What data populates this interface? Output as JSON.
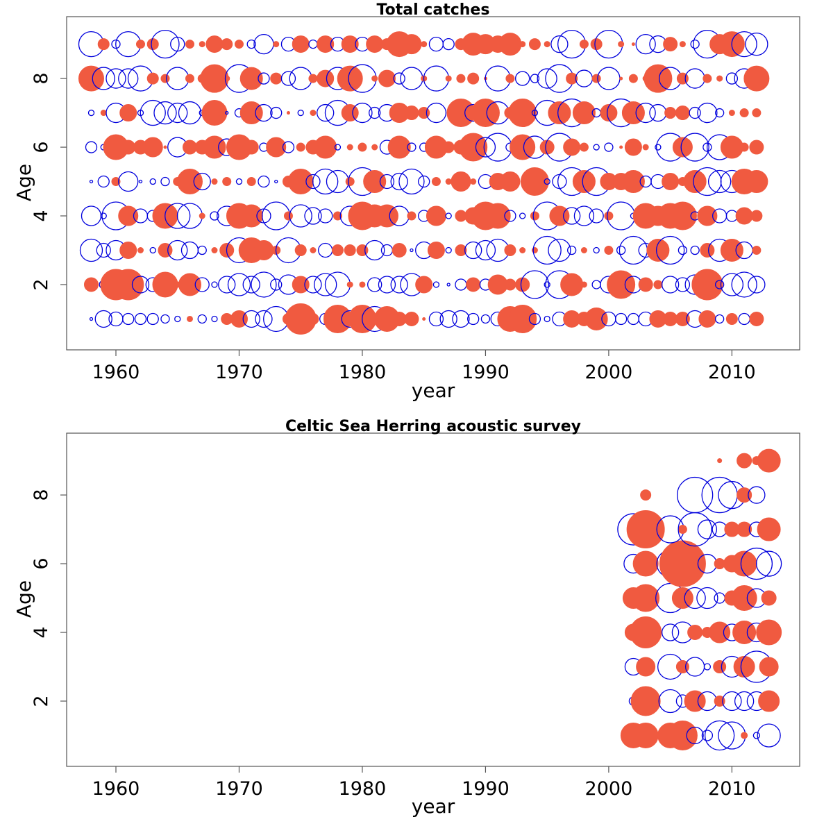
{
  "colors": {
    "positive": "#F05A40",
    "negative": "#0000DD"
  },
  "chart_data": [
    {
      "type": "scatter",
      "title": "Total catches",
      "xlabel": "year",
      "ylabel": "Age",
      "xlim": [
        1956,
        2015.5
      ],
      "ylim": [
        0.1,
        9.8
      ],
      "xticks": [
        1960,
        1970,
        1980,
        1990,
        2000,
        2010
      ],
      "yticks": [
        2,
        4,
        6,
        8
      ],
      "x": [
        1958,
        1959,
        1960,
        1961,
        1962,
        1963,
        1964,
        1965,
        1966,
        1967,
        1968,
        1969,
        1970,
        1971,
        1972,
        1973,
        1974,
        1975,
        1976,
        1977,
        1978,
        1979,
        1980,
        1981,
        1982,
        1983,
        1984,
        1985,
        1986,
        1987,
        1988,
        1989,
        1990,
        1991,
        1992,
        1993,
        1994,
        1995,
        1996,
        1997,
        1998,
        1999,
        2000,
        2001,
        2002,
        2003,
        2004,
        2005,
        2006,
        2007,
        2008,
        2009,
        2010,
        2011,
        2012
      ],
      "ages": [
        1,
        2,
        3,
        4,
        5,
        6,
        7,
        8,
        9
      ],
      "residuals": [
        [
          -1,
          -6,
          -5,
          -4,
          -4,
          -4,
          -3,
          -2,
          2,
          -3,
          -2,
          4,
          6,
          -6,
          -6,
          -9,
          4,
          11,
          4,
          -4,
          10,
          -6,
          10,
          -9,
          9,
          5,
          5,
          1,
          -5,
          -6,
          -6,
          -4,
          -3,
          -5,
          9,
          10,
          -4,
          -2,
          -5,
          6,
          5,
          8,
          -5,
          -4,
          -4,
          -5,
          6,
          5,
          5,
          -6,
          6,
          -3,
          4,
          -4,
          5
        ],
        [
          5,
          -3,
          11,
          11,
          -6,
          -5,
          9,
          2,
          8,
          -5,
          -2,
          -6,
          -8,
          -6,
          -9,
          -4,
          -7,
          6,
          -6,
          -8,
          -9,
          2,
          2,
          -5,
          -6,
          -6,
          -8,
          6,
          -2,
          -1,
          -4,
          5,
          -4,
          7,
          4,
          5,
          -10,
          -2,
          -10,
          8,
          2,
          -3,
          -6,
          10,
          -6,
          5,
          3,
          -6,
          -5,
          -7,
          11,
          -3,
          -8,
          -9,
          -6
        ],
        [
          -8,
          -5,
          -7,
          6,
          2,
          -2,
          5,
          -7,
          -6,
          -3,
          2,
          5,
          -9,
          9,
          7,
          3,
          -9,
          4,
          2,
          -5,
          4,
          4,
          4,
          -7,
          -4,
          5,
          -1,
          -6,
          6,
          -2,
          4,
          -6,
          -7,
          -8,
          4,
          2,
          2,
          -10,
          -8,
          -3,
          2,
          -2,
          3,
          -3,
          -10,
          -5,
          8,
          -10,
          -3,
          -3,
          5,
          -8,
          8,
          -6,
          3
        ],
        [
          -7,
          -2,
          -10,
          7,
          -5,
          -4,
          9,
          -9,
          -9,
          2,
          -3,
          -7,
          9,
          8,
          -5,
          -10,
          3,
          -8,
          -6,
          -5,
          3,
          -7,
          10,
          8,
          8,
          -7,
          3,
          -4,
          7,
          -2,
          4,
          6,
          10,
          9,
          -4,
          -2,
          3,
          -10,
          7,
          -6,
          -7,
          -5,
          3,
          -10,
          -2,
          9,
          7,
          9,
          10,
          -3,
          7,
          -5,
          -4,
          6,
          4
        ],
        [
          -1,
          -4,
          3,
          -7,
          -1,
          -2,
          -3,
          3,
          9,
          -6,
          2,
          3,
          -2,
          3,
          -4,
          -1,
          4,
          9,
          -5,
          -9,
          -8,
          3,
          -10,
          8,
          -5,
          -6,
          -9,
          -4,
          3,
          2,
          7,
          2,
          -5,
          6,
          7,
          -1,
          10,
          -2,
          -5,
          -10,
          8,
          -10,
          6,
          6,
          8,
          -4,
          -5,
          6,
          3,
          8,
          -10,
          -8,
          -8,
          9,
          8
        ],
        [
          -4,
          -2,
          9,
          5,
          5,
          7,
          1,
          -7,
          5,
          5,
          8,
          -6,
          9,
          5,
          -3,
          7,
          -4,
          3,
          5,
          8,
          -2,
          2,
          3,
          2,
          -5,
          8,
          -3,
          -3,
          8,
          4,
          5,
          10,
          -7,
          -10,
          -3,
          9,
          -8,
          5,
          -10,
          6,
          3,
          -2,
          -3,
          1,
          6,
          2,
          -2,
          -10,
          7,
          -10,
          -3,
          -9,
          8,
          3,
          5
        ],
        [
          -2,
          2,
          -7,
          6,
          -2,
          -9,
          -8,
          -7,
          -8,
          -2,
          9,
          -1,
          -3,
          8,
          -6,
          -4,
          1,
          -2,
          2,
          -6,
          -9,
          6,
          -7,
          -4,
          -6,
          7,
          5,
          4,
          -7,
          -1,
          10,
          -6,
          10,
          -8,
          4,
          10,
          -2,
          -9,
          8,
          -10,
          8,
          -3,
          6,
          -10,
          8,
          -7,
          -6,
          4,
          5,
          -4,
          -7,
          -3,
          2,
          3,
          3
        ],
        [
          9,
          -8,
          -7,
          -7,
          -9,
          4,
          3,
          -8,
          3,
          3,
          10,
          2,
          -10,
          8,
          -4,
          4,
          -5,
          -8,
          3,
          6,
          -8,
          9,
          -10,
          2,
          6,
          -4,
          -8,
          2,
          -9,
          2,
          3,
          4,
          1,
          -9,
          3,
          -5,
          -3,
          -7,
          -10,
          4,
          -6,
          3,
          -8,
          1,
          3,
          2,
          10,
          -8,
          4,
          -7,
          3,
          2,
          -4,
          -7,
          9
        ],
        [
          -9,
          4,
          -3,
          -9,
          3,
          4,
          -10,
          -5,
          3,
          2,
          6,
          4,
          3,
          -3,
          -7,
          2,
          -5,
          6,
          -3,
          6,
          -5,
          6,
          -5,
          6,
          4,
          9,
          7,
          2,
          -5,
          -4,
          4,
          8,
          7,
          6,
          8,
          2,
          4,
          2,
          -6,
          -10,
          3,
          4,
          -10,
          2,
          1,
          -7,
          -6,
          5,
          2,
          -3,
          -10,
          7,
          9,
          -9,
          -8
        ]
      ]
    },
    {
      "type": "scatter",
      "title": "Celtic Sea Herring acoustic survey",
      "xlabel": "year",
      "ylabel": "Age",
      "xlim": [
        1956,
        2015.5
      ],
      "ylim": [
        0.1,
        9.8
      ],
      "xticks": [
        1960,
        1970,
        1980,
        1990,
        2000,
        2010
      ],
      "yticks": [
        2,
        4,
        6,
        8
      ],
      "x": [
        2002,
        2003,
        2004,
        2005,
        2006,
        2007,
        2008,
        2009,
        2010,
        2011,
        2012,
        2013
      ],
      "ages": [
        1,
        2,
        3,
        4,
        5,
        6,
        7,
        8,
        9
      ],
      "residuals": [
        [
          12,
          12,
          null,
          12,
          14,
          -8,
          -5,
          -14,
          -13,
          3,
          -3,
          -11
        ],
        [
          -4,
          14,
          null,
          -11,
          -6,
          10,
          -9,
          5,
          -9,
          -9,
          -9,
          10
        ],
        [
          -8,
          9,
          null,
          -12,
          6,
          -9,
          -3,
          6,
          -10,
          10,
          -15,
          9
        ],
        [
          8,
          15,
          null,
          -8,
          -10,
          7,
          5,
          10,
          -8,
          11,
          -9,
          12
        ],
        [
          10,
          13,
          null,
          -14,
          10,
          -10,
          -10,
          -5,
          7,
          12,
          -9,
          7
        ],
        [
          -9,
          12,
          null,
          -13,
          22,
          8,
          -9,
          5,
          8,
          12,
          -15,
          -12
        ],
        [
          -15,
          18,
          null,
          -13,
          4,
          -16,
          -9,
          -7,
          7,
          7,
          -7,
          11
        ],
        [
          null,
          5,
          null,
          null,
          null,
          -17,
          null,
          -17,
          -13,
          7,
          -8,
          null
        ],
        [
          null,
          null,
          null,
          null,
          null,
          null,
          null,
          2,
          null,
          7,
          4,
          11
        ]
      ]
    }
  ]
}
